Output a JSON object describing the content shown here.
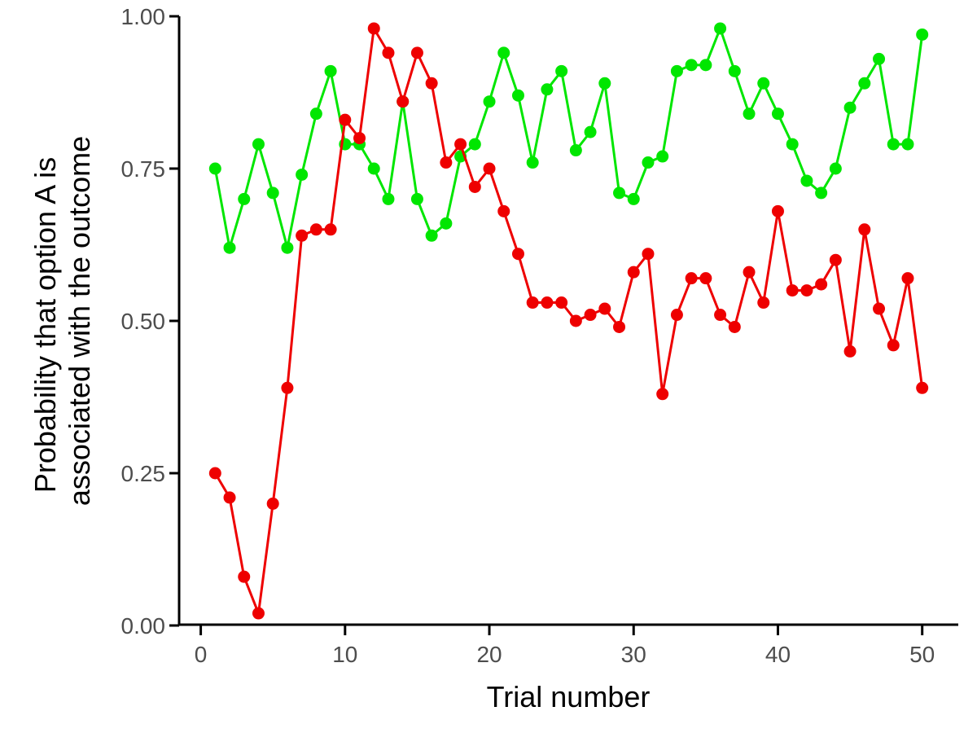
{
  "chart_data": {
    "type": "line",
    "title": "",
    "xlabel": "Trial number",
    "ylabel": [
      "Probability that option A is",
      "associated with the outcome"
    ],
    "xlim": [
      -1.5,
      52.5
    ],
    "ylim": [
      0,
      1
    ],
    "x_ticks": [
      0,
      10,
      20,
      30,
      40,
      50
    ],
    "x_tick_labels": [
      "0",
      "10",
      "20",
      "30",
      "40",
      "50"
    ],
    "y_ticks": [
      0,
      0.25,
      0.5,
      0.75,
      1
    ],
    "y_tick_labels": [
      "0.00",
      "0.25",
      "0.50",
      "0.75",
      "1.00"
    ],
    "grid": false,
    "legend": "none",
    "x": [
      1,
      2,
      3,
      4,
      5,
      6,
      7,
      8,
      9,
      10,
      11,
      12,
      13,
      14,
      15,
      16,
      17,
      18,
      19,
      20,
      21,
      22,
      23,
      24,
      25,
      26,
      27,
      28,
      29,
      30,
      31,
      32,
      33,
      34,
      35,
      36,
      37,
      38,
      39,
      40,
      41,
      42,
      43,
      44,
      45,
      46,
      47,
      48,
      49,
      50
    ],
    "series": [
      {
        "color": "#00e600",
        "values": [
          0.75,
          0.62,
          0.7,
          0.79,
          0.71,
          0.62,
          0.74,
          0.84,
          0.91,
          0.79,
          0.79,
          0.75,
          0.7,
          0.86,
          0.7,
          0.64,
          0.66,
          0.77,
          0.79,
          0.86,
          0.94,
          0.87,
          0.76,
          0.88,
          0.91,
          0.78,
          0.81,
          0.89,
          0.71,
          0.7,
          0.76,
          0.77,
          0.91,
          0.92,
          0.92,
          0.98,
          0.91,
          0.84,
          0.89,
          0.84,
          0.79,
          0.73,
          0.71,
          0.75,
          0.85,
          0.89,
          0.93,
          0.79,
          0.79,
          0.97
        ]
      },
      {
        "color": "#ee0000",
        "values": [
          0.25,
          0.21,
          0.08,
          0.02,
          0.2,
          0.39,
          0.64,
          0.65,
          0.65,
          0.83,
          0.8,
          0.98,
          0.94,
          0.86,
          0.94,
          0.89,
          0.76,
          0.79,
          0.72,
          0.75,
          0.68,
          0.61,
          0.53,
          0.53,
          0.53,
          0.5,
          0.51,
          0.52,
          0.49,
          0.58,
          0.61,
          0.38,
          0.51,
          0.57,
          0.57,
          0.51,
          0.49,
          0.58,
          0.53,
          0.68,
          0.55,
          0.55,
          0.56,
          0.6,
          0.45,
          0.65,
          0.52,
          0.46,
          0.57,
          0.39
        ]
      }
    ]
  }
}
